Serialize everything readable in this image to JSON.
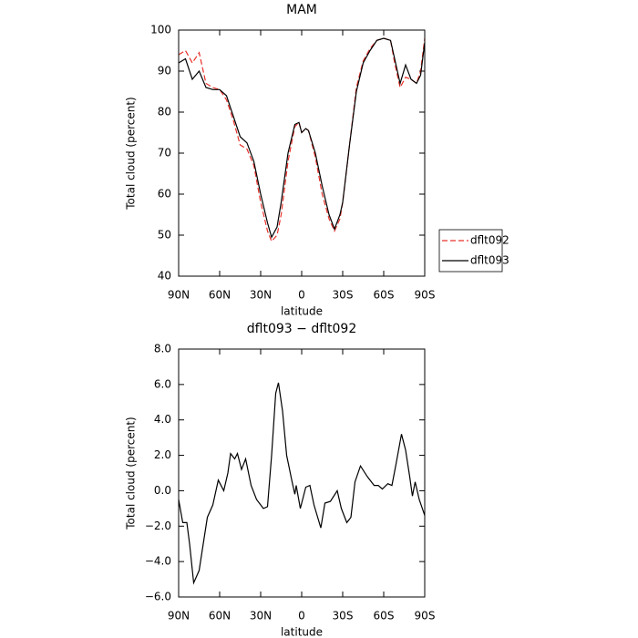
{
  "chart_data": [
    {
      "type": "line",
      "title": "MAM",
      "xlabel": "latitude",
      "ylabel": "Total cloud (percent)",
      "xlim": [
        90,
        -90
      ],
      "ylim": [
        40,
        100
      ],
      "xticks": [
        {
          "value": 90,
          "label": "90N"
        },
        {
          "value": 60,
          "label": "60N"
        },
        {
          "value": 30,
          "label": "30N"
        },
        0,
        {
          "value": -30,
          "label": "30S"
        },
        {
          "value": -60,
          "label": "60S"
        },
        {
          "value": -90,
          "label": "90S"
        }
      ],
      "yticks": [
        40,
        50,
        60,
        70,
        80,
        90,
        100
      ],
      "legend": "right",
      "x": [
        90,
        85,
        80,
        75,
        70,
        65,
        60,
        55,
        50,
        45,
        40,
        35,
        30,
        25,
        22,
        18,
        15,
        10,
        5,
        2,
        0,
        -3,
        -5,
        -10,
        -15,
        -20,
        -24,
        -28,
        -30,
        -35,
        -40,
        -45,
        -50,
        -55,
        -60,
        -65,
        -68,
        -72,
        -76,
        -80,
        -84,
        -87,
        -90
      ],
      "series": [
        {
          "name": "dflt092",
          "color": "#e8312a",
          "dash": true,
          "values": [
            94,
            95,
            92,
            94.5,
            87,
            86,
            85.5,
            83,
            78,
            72,
            71,
            67,
            58,
            51,
            48.5,
            50,
            55,
            68,
            76.5,
            77.5,
            75,
            76,
            75.5,
            69,
            60,
            54,
            51,
            54,
            58,
            72,
            86,
            92.5,
            95.5,
            97.5,
            98,
            97.5,
            92,
            86,
            88.5,
            88,
            87,
            90,
            98
          ]
        },
        {
          "name": "dflt093",
          "color": "#000000",
          "dash": false,
          "values": [
            92,
            93,
            88,
            90,
            86,
            85.5,
            85.5,
            84,
            79,
            74,
            72.5,
            68,
            60,
            53,
            49.5,
            52,
            58,
            70,
            77,
            77.5,
            75,
            76,
            75.5,
            70,
            62,
            55,
            51.5,
            55,
            58,
            72,
            85,
            92,
            95,
            97.5,
            98,
            97.5,
            93,
            87,
            91.5,
            88,
            87,
            89,
            97
          ]
        }
      ]
    },
    {
      "type": "line",
      "title": "dflt093 − dflt092",
      "xlabel": "latitude",
      "ylabel": "Total cloud (percent)",
      "xlim": [
        90,
        -90
      ],
      "ylim": [
        -6,
        8
      ],
      "xticks": [
        {
          "value": 90,
          "label": "90N"
        },
        {
          "value": 60,
          "label": "60N"
        },
        {
          "value": 30,
          "label": "30N"
        },
        0,
        {
          "value": -30,
          "label": "30S"
        },
        {
          "value": -60,
          "label": "60S"
        },
        {
          "value": -90,
          "label": "90S"
        }
      ],
      "yticks": [
        {
          "value": -6,
          "label": "−6.0"
        },
        {
          "value": -4,
          "label": "−4.0"
        },
        {
          "value": -2,
          "label": "−2.0"
        },
        {
          "value": 0,
          "label": "0.0"
        },
        {
          "value": 2,
          "label": "2.0"
        },
        {
          "value": 4,
          "label": "4.0"
        },
        {
          "value": 6,
          "label": "6.0"
        },
        {
          "value": 8,
          "label": "8.0"
        }
      ],
      "x": [
        90,
        87,
        84,
        82,
        79,
        75,
        73,
        69,
        65,
        61,
        57,
        54,
        52,
        49,
        47,
        44,
        41,
        37,
        33,
        28,
        25,
        22,
        19,
        17,
        14,
        11,
        7,
        5,
        4,
        1,
        -3,
        -6,
        -9,
        -14,
        -17,
        -21,
        -26,
        -29,
        -33,
        -36,
        -39,
        -43,
        -48,
        -53,
        -56,
        -59,
        -63,
        -66,
        -69,
        -73,
        -76,
        -79,
        -81,
        -83,
        -86,
        -90
      ],
      "series": [
        {
          "color": "#000000",
          "dash": false,
          "values": [
            -0.5,
            -1.8,
            -1.8,
            -3,
            -5.2,
            -4.5,
            -3.5,
            -1.5,
            -0.8,
            0.6,
            0,
            1.0,
            2.1,
            1.8,
            2.1,
            1.2,
            1.8,
            0.3,
            -0.5,
            -1.0,
            -0.9,
            2.0,
            5.5,
            6.1,
            4.5,
            2.0,
            0.5,
            -0.2,
            0.3,
            -1.0,
            0.2,
            0.3,
            -0.8,
            -2.1,
            -0.7,
            -0.6,
            0,
            -1.0,
            -1.8,
            -1.5,
            0.5,
            1.4,
            0.8,
            0.3,
            0.3,
            0.1,
            0.4,
            0.3,
            1.5,
            3.2,
            2.3,
            0.8,
            -0.3,
            0.5,
            -0.5,
            -1.4
          ]
        }
      ]
    }
  ]
}
